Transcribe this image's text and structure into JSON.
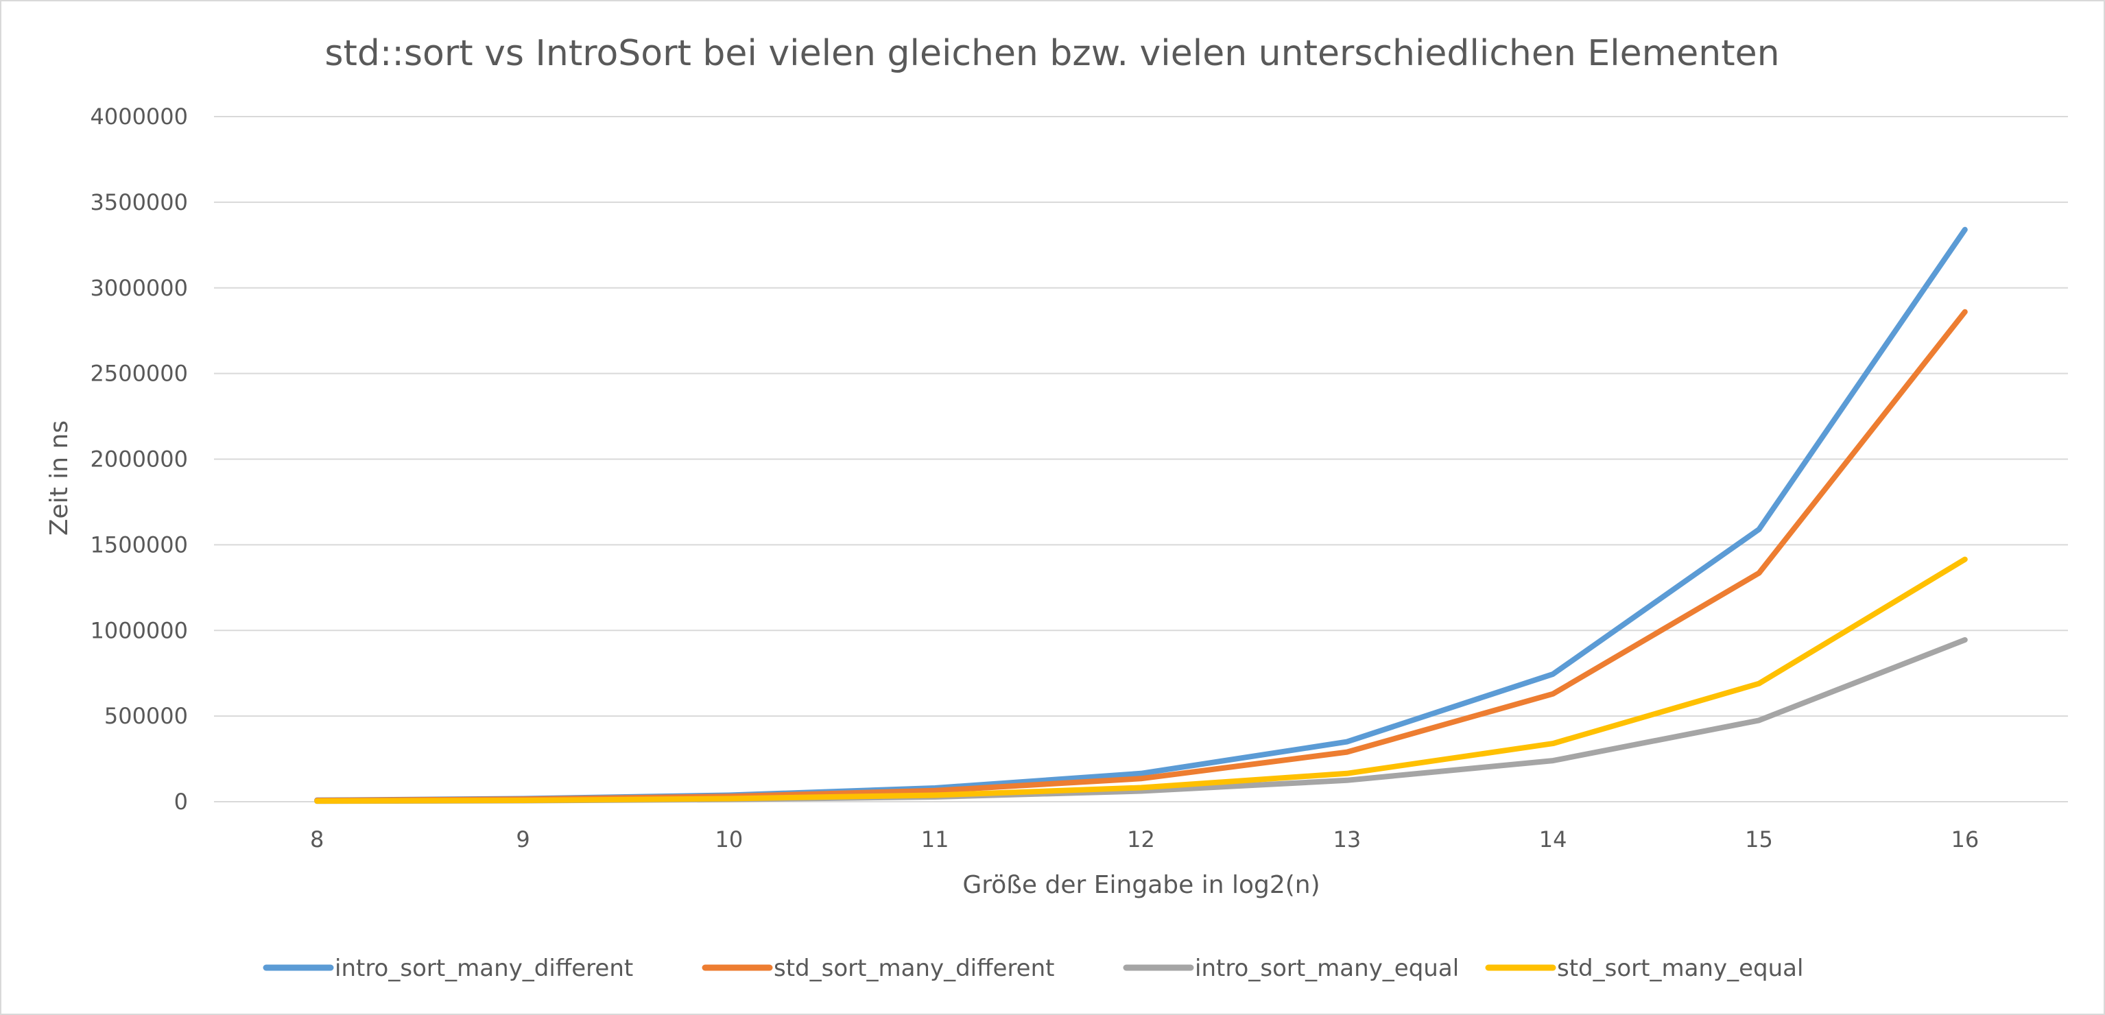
{
  "chart_data": {
    "type": "line",
    "title": "std::sort vs IntroSort bei vielen gleichen bzw. vielen unterschiedlichen Elementen",
    "xlabel": "Größe der Eingabe in log2(n)",
    "ylabel": "Zeit in ns",
    "categories": [
      "8",
      "9",
      "10",
      "11",
      "12",
      "13",
      "14",
      "15",
      "16"
    ],
    "ylim": [
      0,
      4000000
    ],
    "yticks": [
      "0",
      "500000",
      "1000000",
      "1500000",
      "2000000",
      "2500000",
      "3000000",
      "3500000",
      "4000000"
    ],
    "grid": true,
    "legend_position": "bottom",
    "series": [
      {
        "name": "intro_sort_many_different",
        "color": "#5b9bd5",
        "values": [
          9000,
          18000,
          38000,
          80000,
          165000,
          350000,
          745000,
          1590000,
          3340000
        ]
      },
      {
        "name": "std_sort_many_different",
        "color": "#ed7d31",
        "values": [
          7500,
          15000,
          31000,
          65000,
          135000,
          290000,
          630000,
          1335000,
          2860000
        ]
      },
      {
        "name": "intro_sort_many_equal",
        "color": "#a5a5a5",
        "values": [
          3000,
          6000,
          13000,
          28000,
          62000,
          125000,
          240000,
          475000,
          945000
        ]
      },
      {
        "name": "std_sort_many_equal",
        "color": "#ffc000",
        "values": [
          4000,
          8000,
          18000,
          38000,
          82000,
          165000,
          340000,
          690000,
          1415000
        ]
      }
    ]
  }
}
